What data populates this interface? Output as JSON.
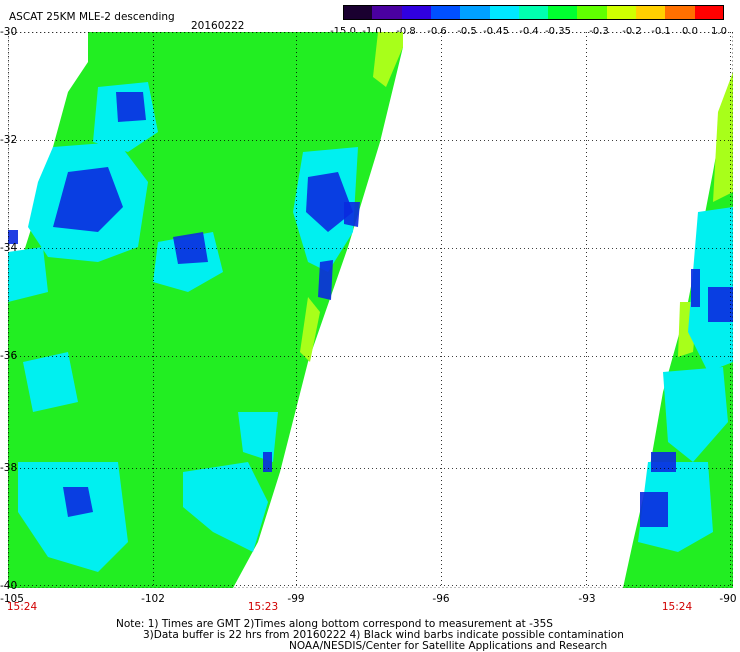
{
  "header": {
    "title": "ASCAT 25KM MLE-2 descending",
    "date": "20160222"
  },
  "colorbar": {
    "labels": [
      "-15.0",
      "-1.0",
      "-0.8",
      "-0.6",
      "-0.5",
      "-0.45",
      "-0.4",
      "-0.35",
      "-0.3",
      "-0.2",
      "-0.1",
      "0.0",
      "1.0"
    ],
    "colors": [
      "#1a0030",
      "#4a00a0",
      "#3000e0",
      "#0050ff",
      "#00a0ff",
      "#00e8ff",
      "#00ffb0",
      "#00ff30",
      "#60ff00",
      "#d0ff00",
      "#ffd000",
      "#ff7000",
      "#ff0000"
    ]
  },
  "map": {
    "lon_range": [
      -105,
      -90
    ],
    "lat_range": [
      -40,
      -30
    ],
    "lat_labels": [
      "-30",
      "-32",
      "-34",
      "-36",
      "-38",
      "-40"
    ],
    "lon_labels": [
      "-105",
      "-102",
      "-99",
      "-96",
      "-93",
      "-90"
    ],
    "times": [
      "15:24",
      "15:23",
      "15:24"
    ]
  },
  "notes": {
    "line1": "Note: 1) Times are GMT 2)Times along bottom correspond to measurement at -35S",
    "line2": "3)Data buffer is 22 hrs from 20160222 4) Black wind barbs indicate possible contamination",
    "line3": "NOAA/NESDIS/Center for Satellite Applications and Research"
  },
  "colors": {
    "green": "#22ee22",
    "cyan": "#00f0f0",
    "blue": "#0a2ae0",
    "yellowgreen": "#a8ff1a"
  }
}
